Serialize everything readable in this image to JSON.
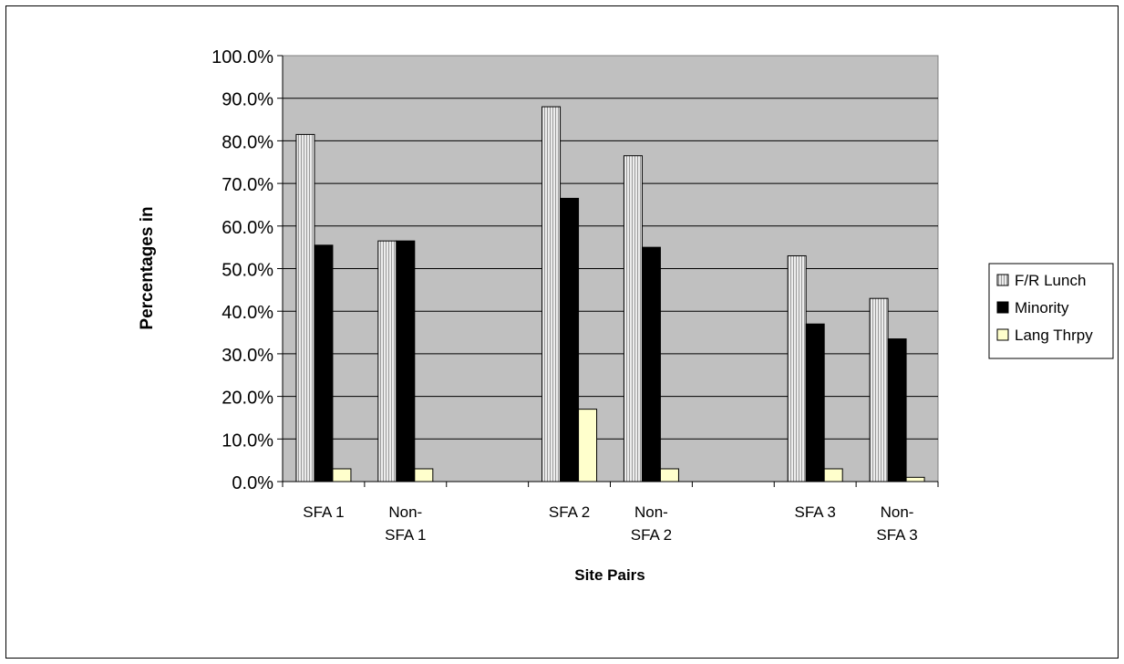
{
  "chart_data": {
    "type": "bar",
    "title": "",
    "xlabel": "Site Pairs",
    "ylabel": "Percentages in",
    "ylim": [
      0,
      100
    ],
    "ytick_step": 10,
    "ytick_labels": [
      "0.0%",
      "10.0%",
      "20.0%",
      "30.0%",
      "40.0%",
      "50.0%",
      "60.0%",
      "70.0%",
      "80.0%",
      "90.0%",
      "100.0%"
    ],
    "categories": [
      [
        "SFA 1"
      ],
      [
        "Non-",
        "SFA 1"
      ],
      [],
      [
        "SFA 2"
      ],
      [
        "Non-",
        "SFA 2"
      ],
      [],
      [
        "SFA 3"
      ],
      [
        "Non-",
        "SFA 3"
      ]
    ],
    "series": [
      {
        "name": "F/R Lunch",
        "color": "#d4d4d4",
        "pattern": "vertical-lines",
        "values": [
          81.5,
          56.5,
          null,
          88.0,
          76.5,
          null,
          53.0,
          43.0
        ]
      },
      {
        "name": "Minority",
        "color": "#000000",
        "values": [
          55.5,
          56.5,
          null,
          66.5,
          55.0,
          null,
          37.0,
          33.5
        ]
      },
      {
        "name": "Lang Thrpy",
        "color": "#ffffcc",
        "values": [
          3.0,
          3.0,
          null,
          17.0,
          3.0,
          null,
          3.0,
          1.0
        ]
      }
    ],
    "plot_background": "#c0c0c0",
    "grid": true,
    "legend_position": "right"
  }
}
